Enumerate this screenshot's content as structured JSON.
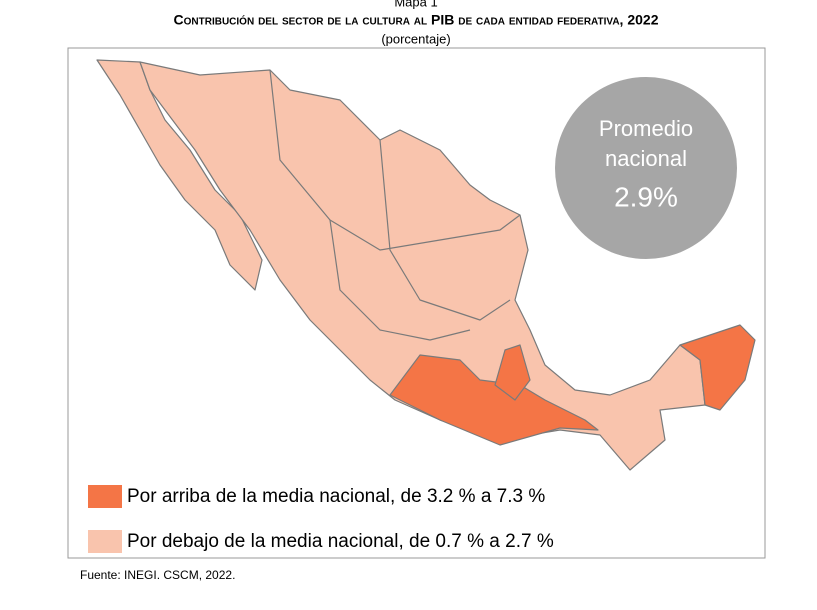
{
  "header": {
    "label": "Mapa 1",
    "title": "Contribución del sector de la cultura al PIB de cada entidad federativa, 2022",
    "subtitle": "(porcentaje)"
  },
  "callout": {
    "lines": [
      "Promedio",
      "nacional"
    ],
    "value": "2.9%",
    "color": "#a6a6a6"
  },
  "legend": [
    {
      "label": "Por arriba de la media nacional, de 3.2 % a 7.3 %",
      "color": "#f47546"
    },
    {
      "label": "Por debajo de la media nacional, de 0.7 % a 2.7 %",
      "color": "#f9c4ad"
    }
  ],
  "source": {
    "prefix": "Fuente:",
    "text": "INEGI. CSCM, 2022."
  }
}
